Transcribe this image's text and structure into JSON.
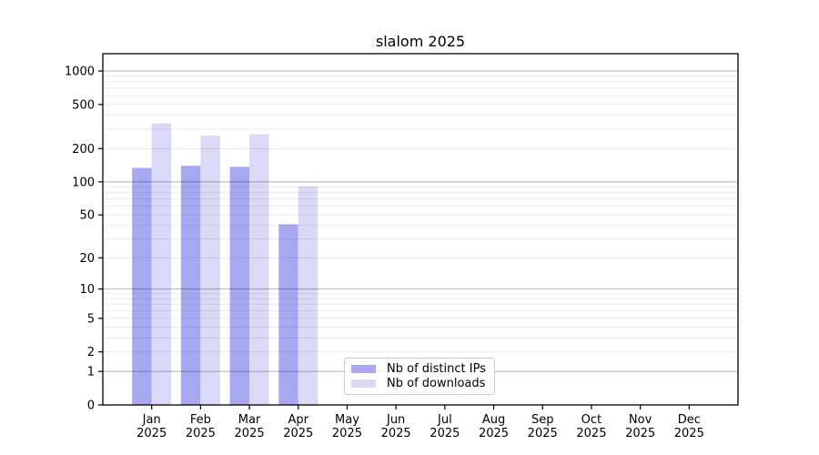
{
  "chart_data": {
    "type": "bar",
    "title": "slalom 2025",
    "categories": [
      "Jan",
      "Feb",
      "Mar",
      "Apr",
      "May",
      "Jun",
      "Jul",
      "Aug",
      "Sep",
      "Oct",
      "Nov",
      "Dec"
    ],
    "category_year": "2025",
    "series": [
      {
        "name": "Nb of distinct IPs",
        "color": "#a8a8f2",
        "values": [
          134,
          140,
          137,
          41,
          null,
          null,
          null,
          null,
          null,
          null,
          null,
          null
        ]
      },
      {
        "name": "Nb of downloads",
        "color": "#dadaf8",
        "values": [
          338,
          262,
          269,
          91,
          null,
          null,
          null,
          null,
          null,
          null,
          null,
          null
        ]
      }
    ],
    "y_axis": {
      "scale": "log1p",
      "ticks": [
        0,
        1,
        2,
        5,
        10,
        20,
        50,
        100,
        200,
        500,
        1000
      ],
      "minor_ticks": [
        3,
        4,
        6,
        7,
        8,
        9,
        30,
        40,
        60,
        70,
        80,
        90,
        300,
        400,
        600,
        700,
        800,
        900
      ],
      "range": [
        0,
        1432
      ]
    },
    "x_axis": {
      "label_line2": "2025"
    },
    "legend": {
      "position": "lower center",
      "frame": true
    },
    "grid": {
      "major_color": "rgba(0,0,0,0.30)",
      "minor_color": "rgba(0,0,0,0.08)",
      "horizontal_only": true
    }
  }
}
